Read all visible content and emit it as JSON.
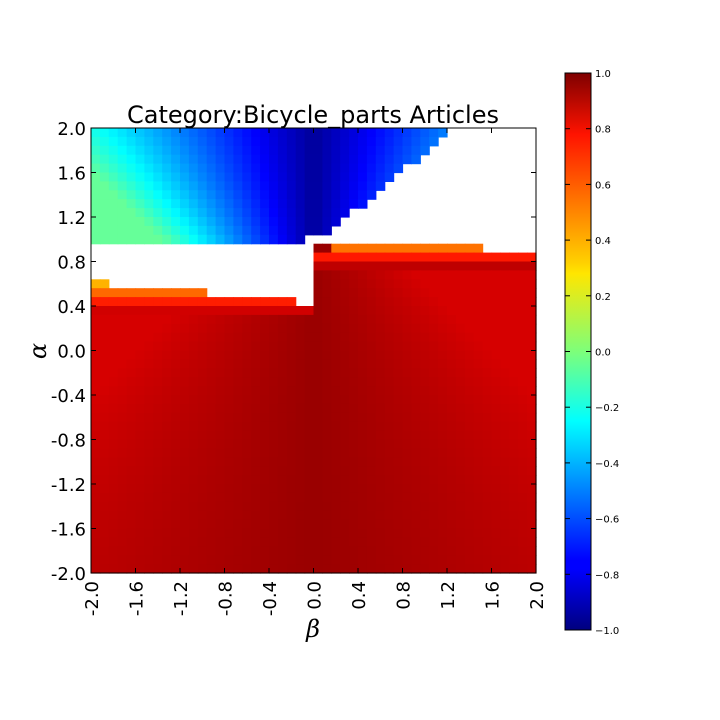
{
  "chart_data": {
    "type": "heatmap",
    "title": "Category:Bicycle_parts Articles",
    "xlabel": "β",
    "ylabel": "α",
    "x_range": [
      -2.0,
      2.0
    ],
    "y_range": [
      -2.0,
      2.0
    ],
    "x_ticks": [
      "-2.0",
      "-1.6",
      "-1.2",
      "-0.8",
      "-0.4",
      "0.0",
      "0.4",
      "0.8",
      "1.2",
      "1.6",
      "2.0"
    ],
    "y_ticks": [
      "2.0",
      "1.6",
      "1.2",
      "0.8",
      "0.4",
      "0.0",
      "-0.4",
      "-0.8",
      "-1.2",
      "-1.6",
      "-2.0"
    ],
    "grid_cells": [
      50,
      50
    ],
    "colormap": "jet",
    "colorbar": {
      "range": [
        -1.0,
        1.0
      ],
      "ticks": [
        "1.0",
        "0.8",
        "0.6",
        "0.4",
        "0.2",
        "0.0",
        "−0.2",
        "−0.4",
        "−0.6",
        "−0.8",
        "−1.0"
      ]
    },
    "description_of_field": {
      "upper_wedge_values": [
        -1.0,
        -0.3
      ],
      "lower_region_values": [
        0.8,
        0.95
      ],
      "missing_band": "white gaps between upper and lower regions for alpha between about 0.4 and 1.2"
    }
  }
}
